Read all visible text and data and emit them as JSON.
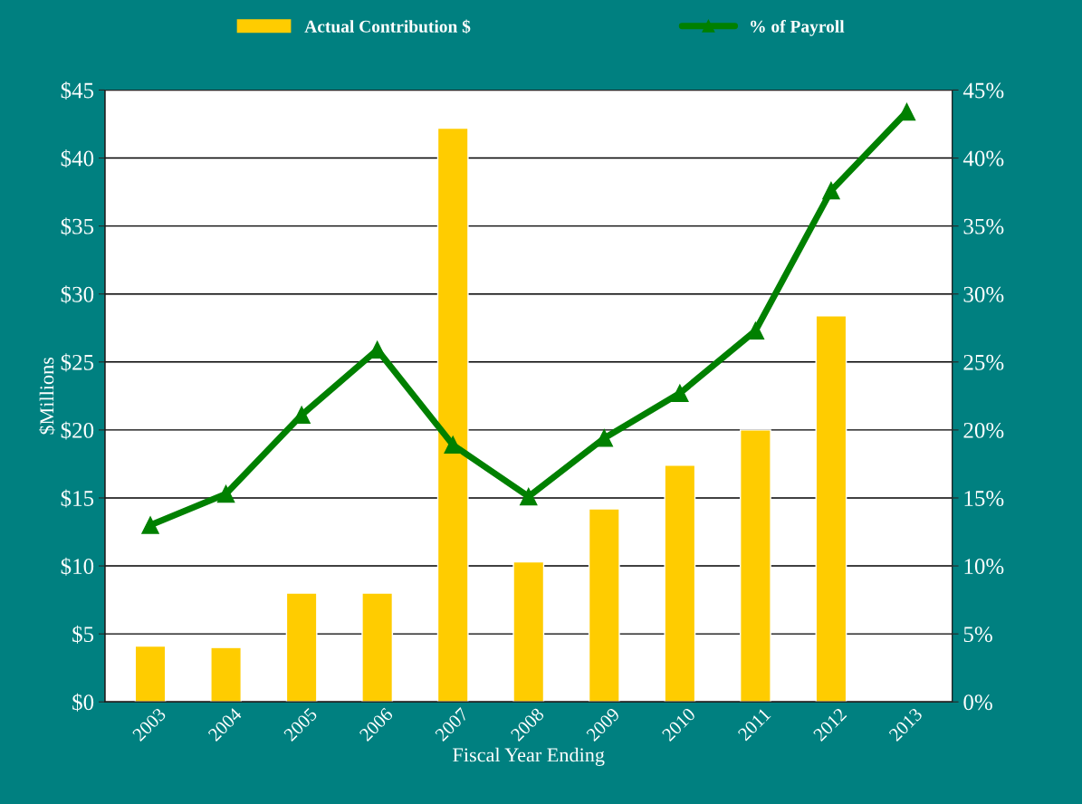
{
  "chart_data": {
    "type": "bar",
    "xlabel": "Fiscal Year Ending",
    "ylabel": "$Millions",
    "categories": [
      "2003",
      "2004",
      "2005",
      "2006",
      "2007",
      "2008",
      "2009",
      "2010",
      "2011",
      "2012",
      "2013"
    ],
    "series": [
      {
        "name": "Actual Contribution $",
        "color": "#ffcc00",
        "values": [
          4.1,
          4.0,
          8.0,
          8.0,
          42.2,
          10.3,
          14.2,
          17.4,
          20.0,
          28.4,
          null
        ]
      },
      {
        "name": "% of Payroll",
        "type": "line",
        "axis": "y2",
        "color": "#008000",
        "marker": "triangle",
        "values": [
          13.0,
          15.3,
          21.1,
          25.9,
          18.9,
          15.1,
          19.4,
          22.7,
          27.3,
          37.6,
          43.4
        ]
      }
    ],
    "ylim": [
      0,
      45
    ],
    "yticks": [
      {
        "value": 0,
        "label": "$0"
      },
      {
        "value": 5,
        "label": "$5"
      },
      {
        "value": 10,
        "label": "$10"
      },
      {
        "value": 15,
        "label": "$15"
      },
      {
        "value": 20,
        "label": "$20"
      },
      {
        "value": 25,
        "label": "$25"
      },
      {
        "value": 30,
        "label": "$30"
      },
      {
        "value": 35,
        "label": "$35"
      },
      {
        "value": 40,
        "label": "$40"
      },
      {
        "value": 45,
        "label": "$45"
      }
    ],
    "y2lim": [
      0,
      45
    ],
    "y2ticks": [
      {
        "value": 0,
        "label": "0%"
      },
      {
        "value": 5,
        "label": "5%"
      },
      {
        "value": 10,
        "label": "10%"
      },
      {
        "value": 15,
        "label": "15%"
      },
      {
        "value": 20,
        "label": "20%"
      },
      {
        "value": 25,
        "label": "25%"
      },
      {
        "value": 30,
        "label": "30%"
      },
      {
        "value": 35,
        "label": "35%"
      },
      {
        "value": 40,
        "label": "40%"
      },
      {
        "value": 45,
        "label": "45%"
      }
    ],
    "grid": "y",
    "legend": "top"
  }
}
